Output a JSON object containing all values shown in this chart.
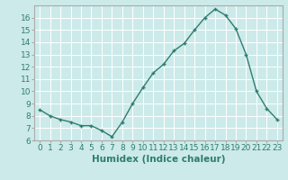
{
  "x": [
    0,
    1,
    2,
    3,
    4,
    5,
    6,
    7,
    8,
    9,
    10,
    11,
    12,
    13,
    14,
    15,
    16,
    17,
    18,
    19,
    20,
    21,
    22,
    23
  ],
  "y": [
    8.5,
    8.0,
    7.7,
    7.5,
    7.2,
    7.2,
    6.8,
    6.3,
    7.5,
    9.0,
    10.3,
    11.5,
    12.2,
    13.3,
    13.9,
    15.0,
    16.0,
    16.7,
    16.2,
    15.1,
    13.0,
    10.0,
    8.6,
    7.7
  ],
  "line_color": "#2e7d6e",
  "marker": "+",
  "marker_size": 3,
  "marker_lw": 1.0,
  "bg_color": "#cceaea",
  "grid_color": "#ffffff",
  "xlabel": "Humidex (Indice chaleur)",
  "xlim": [
    -0.5,
    23.5
  ],
  "ylim": [
    6,
    17
  ],
  "yticks": [
    6,
    7,
    8,
    9,
    10,
    11,
    12,
    13,
    14,
    15,
    16
  ],
  "xticks": [
    0,
    1,
    2,
    3,
    4,
    5,
    6,
    7,
    8,
    9,
    10,
    11,
    12,
    13,
    14,
    15,
    16,
    17,
    18,
    19,
    20,
    21,
    22,
    23
  ],
  "xtick_labels": [
    "0",
    "1",
    "2",
    "3",
    "4",
    "5",
    "6",
    "7",
    "8",
    "9",
    "10",
    "11",
    "12",
    "13",
    "14",
    "15",
    "16",
    "17",
    "18",
    "19",
    "20",
    "21",
    "22",
    "23"
  ],
  "xlabel_fontsize": 7.5,
  "tick_fontsize": 6.5,
  "line_width": 1.0
}
